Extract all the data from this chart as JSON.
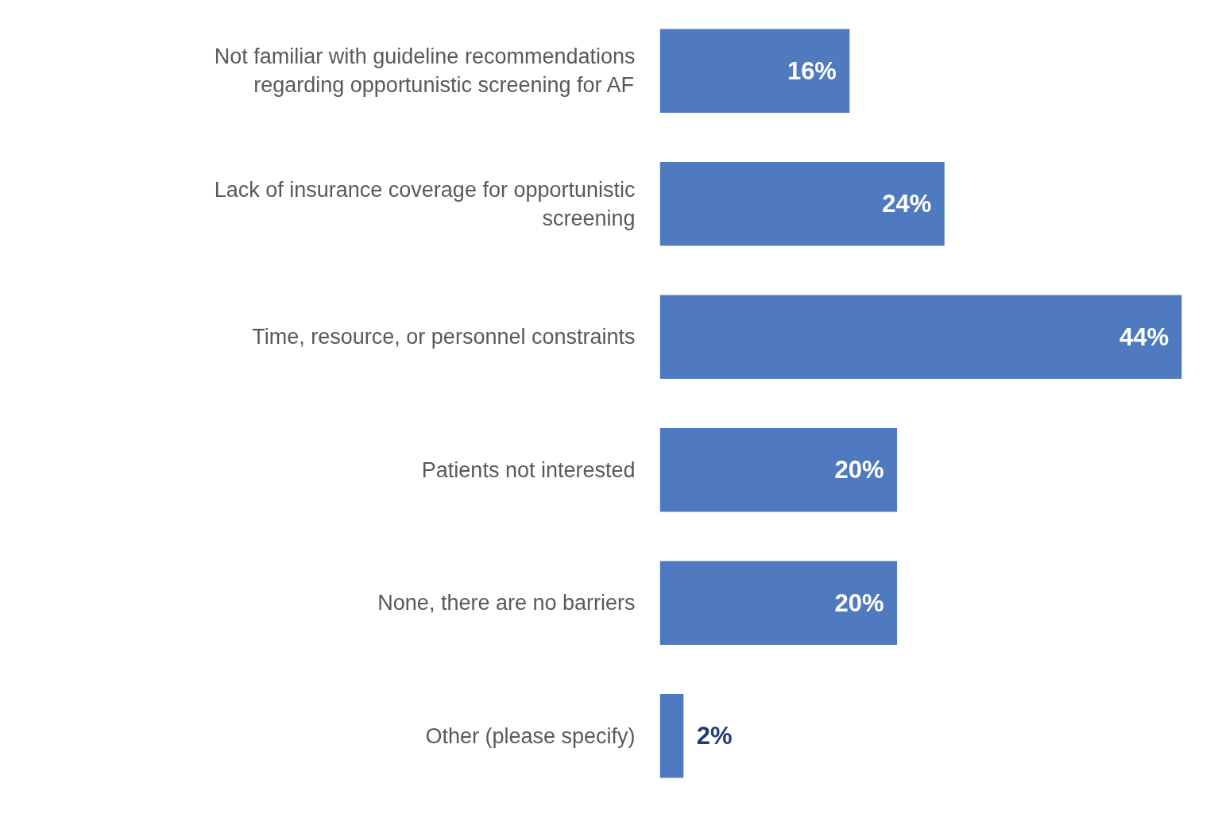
{
  "chart_data": {
    "type": "bar",
    "orientation": "horizontal",
    "categories": [
      "Not familiar with guideline recommendations regarding opportunistic screening for AF",
      "Lack of insurance coverage for opportunistic screening",
      "Time, resource, or personnel constraints",
      "Patients not interested",
      "None, there are no barriers",
      "Other (please specify)"
    ],
    "values": [
      16,
      24,
      44,
      20,
      20,
      2
    ],
    "value_labels": [
      "16%",
      "24%",
      "44%",
      "20%",
      "20%",
      "2%"
    ],
    "color": "#4f7abf",
    "grid": false
  }
}
